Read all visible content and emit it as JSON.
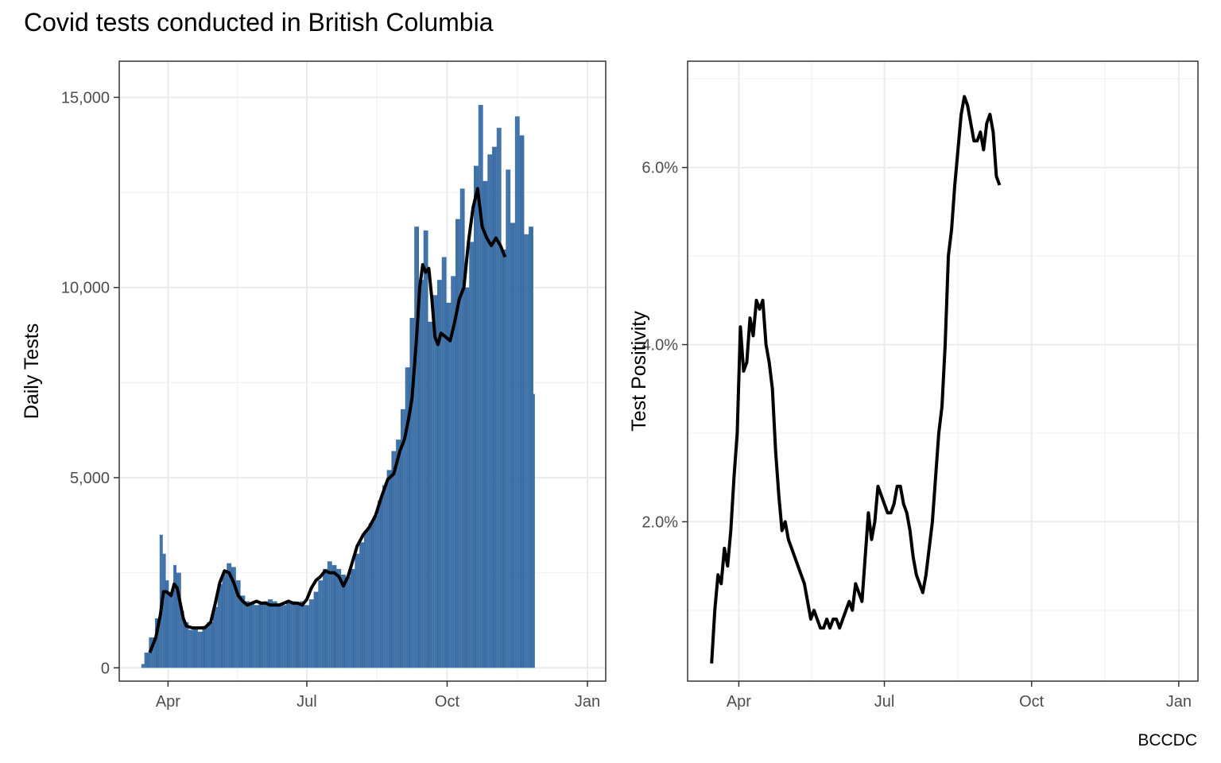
{
  "title": "Covid tests conducted in British Columbia",
  "caption": "BCCDC",
  "colors": {
    "bar": "#3A6EA5",
    "line": "#000000",
    "grid": "#EBEBEB",
    "panel_border": "#333333"
  },
  "chart_data": [
    {
      "type": "bar",
      "title": "",
      "xlabel": "",
      "ylabel": "Daily Tests",
      "x_ticks": [
        "Apr",
        "Jul",
        "Oct",
        "Jan"
      ],
      "y_ticks": [
        "0",
        "5,000",
        "10,000",
        "15,000"
      ],
      "ylim": [
        -350,
        15950
      ],
      "xlim": [
        0,
        274
      ],
      "grid": true,
      "series": [
        {
          "values_note_removed": true,
          "bars": [
            [
              15,
              100
            ],
            [
              17,
              400
            ],
            [
              20,
              800
            ],
            [
              24,
              1300
            ],
            [
              27,
              3500
            ],
            [
              29,
              3000
            ],
            [
              31,
              2300
            ],
            [
              33,
              2000
            ],
            [
              36,
              2700
            ],
            [
              38,
              2500
            ],
            [
              41,
              1500
            ],
            [
              43,
              1200
            ],
            [
              46,
              1000
            ],
            [
              49,
              1050
            ],
            [
              52,
              950
            ],
            [
              55,
              1100
            ],
            [
              58,
              1200
            ],
            [
              62,
              1600
            ],
            [
              65,
              2200
            ],
            [
              68,
              2500
            ],
            [
              71,
              2750
            ],
            [
              74,
              2650
            ],
            [
              77,
              2300
            ],
            [
              80,
              1900
            ],
            [
              83,
              1750
            ],
            [
              86,
              1700
            ],
            [
              89,
              1650
            ],
            [
              92,
              1700
            ],
            [
              95,
              1750
            ],
            [
              98,
              1800
            ],
            [
              101,
              1750
            ],
            [
              104,
              1700
            ],
            [
              107,
              1650
            ],
            [
              110,
              1700
            ],
            [
              113,
              1750
            ],
            [
              116,
              1700
            ],
            [
              119,
              1750
            ],
            [
              122,
              1650
            ],
            [
              125,
              1800
            ],
            [
              128,
              2000
            ],
            [
              131,
              2300
            ],
            [
              134,
              2600
            ],
            [
              137,
              2800
            ],
            [
              140,
              2700
            ],
            [
              143,
              2600
            ],
            [
              146,
              2450
            ],
            [
              149,
              2400
            ],
            [
              152,
              2600
            ],
            [
              155,
              3000
            ],
            [
              158,
              3300
            ],
            [
              161,
              3600
            ],
            [
              164,
              3800
            ],
            [
              167,
              4000
            ],
            [
              170,
              4400
            ],
            [
              173,
              4800
            ],
            [
              176,
              5200
            ],
            [
              179,
              5700
            ],
            [
              182,
              6000
            ],
            [
              185,
              6800
            ],
            [
              188,
              7900
            ],
            [
              191,
              9200
            ],
            [
              194,
              11600
            ],
            [
              197,
              10200
            ],
            [
              200,
              11500
            ],
            [
              203,
              9100
            ],
            [
              206,
              9800
            ],
            [
              209,
              10200
            ],
            [
              212,
              10800
            ],
            [
              215,
              9600
            ],
            [
              218,
              10300
            ],
            [
              221,
              11800
            ],
            [
              224,
              12600
            ],
            [
              227,
              10000
            ],
            [
              230,
              11200
            ],
            [
              233,
              13200
            ],
            [
              236,
              14800
            ],
            [
              239,
              12800
            ],
            [
              242,
              13500
            ],
            [
              245,
              13700
            ],
            [
              248,
              14200
            ],
            [
              251,
              11000
            ],
            [
              254,
              13100
            ],
            [
              257,
              11700
            ],
            [
              260,
              14500
            ],
            [
              263,
              14000
            ],
            [
              266,
              11400
            ],
            [
              269,
              11600
            ],
            [
              272,
              7200
            ]
          ]
        },
        {
          "name": "",
          "type": "line",
          "points": [
            [
              20,
              400
            ],
            [
              24,
              800
            ],
            [
              27,
              1400
            ],
            [
              29,
              2000
            ],
            [
              31,
              2000
            ],
            [
              34,
              1900
            ],
            [
              36,
              2200
            ],
            [
              38,
              2100
            ],
            [
              40,
              1700
            ],
            [
              42,
              1300
            ],
            [
              44,
              1100
            ],
            [
              48,
              1050
            ],
            [
              52,
              1050
            ],
            [
              56,
              1050
            ],
            [
              60,
              1200
            ],
            [
              63,
              1700
            ],
            [
              66,
              2250
            ],
            [
              69,
              2550
            ],
            [
              72,
              2500
            ],
            [
              75,
              2250
            ],
            [
              78,
              1900
            ],
            [
              81,
              1750
            ],
            [
              84,
              1650
            ],
            [
              87,
              1700
            ],
            [
              90,
              1750
            ],
            [
              93,
              1700
            ],
            [
              96,
              1700
            ],
            [
              99,
              1650
            ],
            [
              102,
              1650
            ],
            [
              105,
              1650
            ],
            [
              108,
              1700
            ],
            [
              111,
              1750
            ],
            [
              114,
              1700
            ],
            [
              117,
              1700
            ],
            [
              120,
              1650
            ],
            [
              123,
              1800
            ],
            [
              126,
              2100
            ],
            [
              129,
              2300
            ],
            [
              132,
              2400
            ],
            [
              135,
              2550
            ],
            [
              138,
              2500
            ],
            [
              141,
              2500
            ],
            [
              144,
              2400
            ],
            [
              147,
              2150
            ],
            [
              150,
              2400
            ],
            [
              153,
              2800
            ],
            [
              156,
              3200
            ],
            [
              160,
              3500
            ],
            [
              164,
              3700
            ],
            [
              168,
              4000
            ],
            [
              172,
              4500
            ],
            [
              176,
              4950
            ],
            [
              180,
              5100
            ],
            [
              184,
              5700
            ],
            [
              187,
              6000
            ],
            [
              190,
              6600
            ],
            [
              192,
              7100
            ],
            [
              195,
              8700
            ],
            [
              197,
              10000
            ],
            [
              199,
              10600
            ],
            [
              201,
              10400
            ],
            [
              203,
              10500
            ],
            [
              205,
              9700
            ],
            [
              207,
              8700
            ],
            [
              209,
              8500
            ],
            [
              211,
              8800
            ],
            [
              214,
              8700
            ],
            [
              217,
              8600
            ],
            [
              220,
              9100
            ],
            [
              223,
              9700
            ],
            [
              226,
              10000
            ],
            [
              229,
              11200
            ],
            [
              232,
              12100
            ],
            [
              235,
              12600
            ],
            [
              238,
              11600
            ],
            [
              241,
              11300
            ],
            [
              244,
              11100
            ],
            [
              247,
              11300
            ],
            [
              250,
              11100
            ],
            [
              253,
              10800
            ]
          ]
        }
      ]
    },
    {
      "type": "line",
      "title": "",
      "xlabel": "",
      "ylabel": "Test Positivity",
      "x_ticks": [
        "Apr",
        "Jul",
        "Oct",
        "Jan"
      ],
      "y_ticks": [
        "2.0%",
        "4.0%",
        "6.0%"
      ],
      "ylim": [
        0.2,
        7.2
      ],
      "xlim": [
        0,
        274
      ],
      "grid": true,
      "series": [
        {
          "name": "",
          "points": [
            [
              15,
              0.4
            ],
            [
              17,
              1.0
            ],
            [
              19,
              1.4
            ],
            [
              21,
              1.3
            ],
            [
              23,
              1.7
            ],
            [
              25,
              1.5
            ],
            [
              27,
              1.9
            ],
            [
              29,
              2.5
            ],
            [
              31,
              3.0
            ],
            [
              33,
              4.2
            ],
            [
              35,
              3.7
            ],
            [
              37,
              3.8
            ],
            [
              39,
              4.3
            ],
            [
              41,
              4.1
            ],
            [
              43,
              4.5
            ],
            [
              45,
              4.4
            ],
            [
              47,
              4.5
            ],
            [
              49,
              4.0
            ],
            [
              51,
              3.8
            ],
            [
              53,
              3.5
            ],
            [
              55,
              2.8
            ],
            [
              57,
              2.3
            ],
            [
              59,
              1.9
            ],
            [
              61,
              2.0
            ],
            [
              63,
              1.8
            ],
            [
              65,
              1.7
            ],
            [
              67,
              1.6
            ],
            [
              69,
              1.5
            ],
            [
              71,
              1.4
            ],
            [
              73,
              1.3
            ],
            [
              75,
              1.1
            ],
            [
              77,
              0.9
            ],
            [
              79,
              1.0
            ],
            [
              81,
              0.9
            ],
            [
              83,
              0.8
            ],
            [
              85,
              0.8
            ],
            [
              87,
              0.9
            ],
            [
              89,
              0.8
            ],
            [
              91,
              0.9
            ],
            [
              93,
              0.9
            ],
            [
              95,
              0.8
            ],
            [
              97,
              0.9
            ],
            [
              99,
              1.0
            ],
            [
              101,
              1.1
            ],
            [
              103,
              1.0
            ],
            [
              105,
              1.3
            ],
            [
              107,
              1.2
            ],
            [
              109,
              1.1
            ],
            [
              111,
              1.6
            ],
            [
              113,
              2.1
            ],
            [
              115,
              1.8
            ],
            [
              117,
              2.0
            ],
            [
              119,
              2.4
            ],
            [
              121,
              2.3
            ],
            [
              123,
              2.2
            ],
            [
              125,
              2.1
            ],
            [
              127,
              2.1
            ],
            [
              129,
              2.2
            ],
            [
              131,
              2.4
            ],
            [
              133,
              2.4
            ],
            [
              135,
              2.2
            ],
            [
              137,
              2.1
            ],
            [
              139,
              1.9
            ],
            [
              141,
              1.6
            ],
            [
              143,
              1.4
            ],
            [
              145,
              1.3
            ],
            [
              147,
              1.2
            ],
            [
              149,
              1.4
            ],
            [
              151,
              1.7
            ],
            [
              153,
              2.0
            ],
            [
              155,
              2.5
            ],
            [
              157,
              3.0
            ],
            [
              159,
              3.3
            ],
            [
              161,
              4.0
            ],
            [
              163,
              5.0
            ],
            [
              165,
              5.3
            ],
            [
              167,
              5.8
            ],
            [
              169,
              6.2
            ],
            [
              171,
              6.6
            ],
            [
              173,
              6.8
            ],
            [
              175,
              6.7
            ],
            [
              177,
              6.5
            ],
            [
              179,
              6.3
            ],
            [
              181,
              6.3
            ],
            [
              183,
              6.4
            ],
            [
              185,
              6.2
            ],
            [
              187,
              6.5
            ],
            [
              189,
              6.6
            ],
            [
              191,
              6.4
            ],
            [
              193,
              5.9
            ],
            [
              195,
              5.8
            ]
          ]
        }
      ]
    }
  ]
}
